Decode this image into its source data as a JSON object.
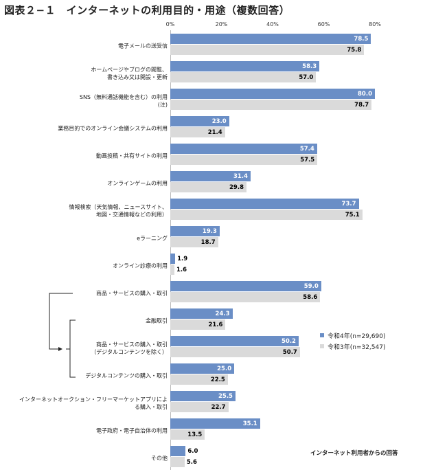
{
  "title": "図表２−１　インターネットの利用目的・用途（複数回答）",
  "note": "インターネット利用者からの回答",
  "chart_data": {
    "type": "bar",
    "orientation": "horizontal",
    "xlim": [
      0,
      80
    ],
    "x_ticks": [
      "0%",
      "20%",
      "40%",
      "60%",
      "80%"
    ],
    "categories": [
      "電子メールの送受信",
      "ホームページやブログの閲覧、\n書き込み又は開設・更新",
      "SNS（無料通話機能を含む）の利用\n(注)",
      "業務目的でのオンライン会議システムの利用",
      "動画投稿・共有サイトの利用",
      "オンラインゲームの利用",
      "情報検索（天気情報、ニュースサイト、\n地図・交通情報などの利用）",
      "eラーニング",
      "オンライン診療の利用",
      "商品・サービスの購入・取引",
      "金融取引",
      "商品・サービスの購入・取引\n（デジタルコンテンツを除く）",
      "デジタルコンテンツの購入・取引",
      "インターネットオークション・フリーマーケットアプリによ\nる購入・取引",
      "電子政府・電子自治体の利用",
      "その他"
    ],
    "series": [
      {
        "name": "令和4年(n=29,690)",
        "color": "#6a8ec6",
        "values": [
          78.5,
          58.3,
          80.0,
          23.0,
          57.4,
          31.4,
          73.7,
          19.3,
          1.9,
          59.0,
          24.3,
          50.2,
          25.0,
          25.5,
          35.1,
          6.0
        ]
      },
      {
        "name": "令和3年(n=32,547)",
        "color": "#dadada",
        "values": [
          75.8,
          57.0,
          78.7,
          21.4,
          57.5,
          29.8,
          75.1,
          18.7,
          1.6,
          58.6,
          21.6,
          50.7,
          22.5,
          22.7,
          13.5,
          5.6
        ]
      }
    ],
    "legend_position": "right"
  }
}
